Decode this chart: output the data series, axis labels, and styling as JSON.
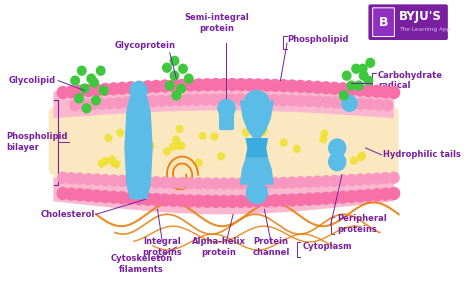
{
  "bg_color": "#ffffff",
  "membrane_fill": "#f9b8d0",
  "membrane_inner_fill": "#fce8c0",
  "bead_outer": "#f870a8",
  "bead_inner": "#f898c0",
  "protein_blue": "#5bbce8",
  "green_bead": "#3ec83e",
  "yellow_dot": "#f0e030",
  "orange_filament": "#e88010",
  "label_color": "#7820a0",
  "byju_purple": "#7820a0",
  "labels": {
    "glycolipid": "Glycolipid",
    "glycoprotein": "Glycoprotein",
    "semi_integral": "Semi-integral\nprotein",
    "phospholipid": "Phospholipid",
    "carbohydrate": "Carbohydrate\nradical",
    "phospholipid_bilayer": "Phospholipid\nbilayer",
    "hydrophilic_tails": "Hydrophilic tails",
    "cholesterol": "Cholesterol",
    "integral_proteins": "Integral\nproteins",
    "cytoskeleton": "Cytoskeleton\nfilaments",
    "alpha_helix": "Alpha-helix\nprotein",
    "protein_channel": "Protein\nchannel",
    "peripheral_proteins": "Peripheral\nproteins",
    "cytoplasm": "Cytoplasm"
  },
  "byju_text": "BYJU'S",
  "byju_sub": "The Learning App",
  "figsize": [
    4.74,
    2.85
  ],
  "dpi": 100
}
